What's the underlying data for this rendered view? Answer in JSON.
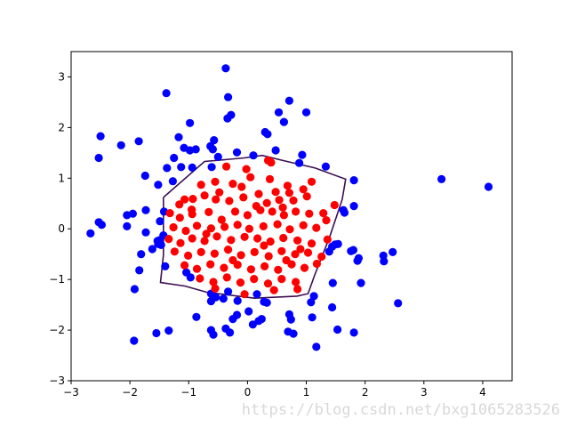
{
  "watermark": "https://blog.csdn.net/bxg1065283526",
  "colors": {
    "class_outer": "#0000ff",
    "class_inner": "#ff0000",
    "boundary": "#3b0f53",
    "axes": "#000000",
    "background": "#ffffff"
  },
  "chart_data": {
    "type": "scatter",
    "title": "",
    "xlabel": "",
    "ylabel": "",
    "xlim": [
      -3,
      4.5
    ],
    "ylim": [
      -3,
      3.5
    ],
    "xticks": [
      "-3",
      "-2",
      "-1",
      "0",
      "1",
      "2",
      "3",
      "4"
    ],
    "yticks": [
      "-3",
      "-2",
      "-1",
      "0",
      "1",
      "2",
      "3"
    ],
    "grid": false,
    "series": [
      {
        "color": "#0000ff",
        "points": [
          [
            -0.37,
            3.17
          ],
          [
            -1.38,
            2.68
          ],
          [
            -0.33,
            2.6
          ],
          [
            0.71,
            2.53
          ],
          [
            -0.28,
            2.25
          ],
          [
            -0.34,
            2.18
          ],
          [
            0.53,
            2.3
          ],
          [
            1.0,
            2.3
          ],
          [
            -0.98,
            2.09
          ],
          [
            0.62,
            2.11
          ],
          [
            -2.5,
            1.83
          ],
          [
            -1.85,
            1.73
          ],
          [
            -2.15,
            1.65
          ],
          [
            -0.57,
            1.75
          ],
          [
            -1.17,
            1.81
          ],
          [
            0.3,
            1.91
          ],
          [
            0.34,
            1.87
          ],
          [
            -1.08,
            1.6
          ],
          [
            -0.98,
            1.55
          ],
          [
            -0.88,
            1.57
          ],
          [
            -0.63,
            1.63
          ],
          [
            -0.59,
            1.57
          ],
          [
            -0.18,
            1.51
          ],
          [
            0.48,
            1.55
          ],
          [
            -2.53,
            1.4
          ],
          [
            -0.5,
            1.42
          ],
          [
            0.1,
            1.45
          ],
          [
            -1.25,
            1.4
          ],
          [
            0.93,
            1.46
          ],
          [
            -1.37,
            1.2
          ],
          [
            -1.13,
            1.22
          ],
          [
            -0.94,
            1.21
          ],
          [
            -0.61,
            1.22
          ],
          [
            1.33,
            1.23
          ],
          [
            0.88,
            1.3
          ],
          [
            -1.74,
            1.05
          ],
          [
            -1.52,
            0.87
          ],
          [
            -1.27,
            0.94
          ],
          [
            1.81,
            0.96
          ],
          [
            3.3,
            0.98
          ],
          [
            4.1,
            0.83
          ],
          [
            -1.42,
            0.34
          ],
          [
            -1.95,
            0.3
          ],
          [
            -1.73,
            0.37
          ],
          [
            -2.05,
            0.27
          ],
          [
            -1.49,
            0.15
          ],
          [
            1.63,
            0.37
          ],
          [
            1.65,
            0.32
          ],
          [
            1.81,
            0.45
          ],
          [
            -2.53,
            0.13
          ],
          [
            -2.48,
            0.08
          ],
          [
            -2.05,
            0.05
          ],
          [
            -2.67,
            -0.09
          ],
          [
            -1.73,
            -0.07
          ],
          [
            -1.52,
            -0.3
          ],
          [
            -1.49,
            -0.22
          ],
          [
            -1.43,
            -0.13
          ],
          [
            -1.53,
            -0.24
          ],
          [
            -1.81,
            -0.5
          ],
          [
            -1.62,
            -0.4
          ],
          [
            -1.47,
            -0.32
          ],
          [
            1.54,
            -0.3
          ],
          [
            1.49,
            -0.31
          ],
          [
            1.44,
            -0.35
          ],
          [
            1.39,
            -0.45
          ],
          [
            1.76,
            -0.44
          ],
          [
            1.8,
            -0.42
          ],
          [
            1.89,
            -0.58
          ],
          [
            1.87,
            -0.63
          ],
          [
            2.31,
            -0.53
          ],
          [
            2.32,
            -0.64
          ],
          [
            2.47,
            -0.46
          ],
          [
            -1.84,
            -0.82
          ],
          [
            -1.4,
            -0.74
          ],
          [
            -1.04,
            -0.86
          ],
          [
            -0.97,
            -0.96
          ],
          [
            1.93,
            -1.07
          ],
          [
            -1.92,
            -1.19
          ],
          [
            1.45,
            -1.07
          ],
          [
            -0.62,
            -1.28
          ],
          [
            -0.62,
            -1.43
          ],
          [
            -0.54,
            -1.35
          ],
          [
            -0.41,
            -1.38
          ],
          [
            -0.33,
            -1.24
          ],
          [
            -0.17,
            -1.42
          ],
          [
            0.16,
            -1.29
          ],
          [
            0.28,
            -1.44
          ],
          [
            0.33,
            -1.46
          ],
          [
            1.08,
            -1.45
          ],
          [
            1.13,
            -1.33
          ],
          [
            1.44,
            -1.55
          ],
          [
            2.56,
            -1.47
          ],
          [
            -0.87,
            -1.74
          ],
          [
            -0.25,
            -1.78
          ],
          [
            -0.18,
            -1.7
          ],
          [
            0.19,
            -1.82
          ],
          [
            0.24,
            -1.78
          ],
          [
            0.09,
            -1.89
          ],
          [
            0.02,
            -1.63
          ],
          [
            0.71,
            -1.69
          ],
          [
            0.74,
            -1.79
          ],
          [
            1.1,
            -1.75
          ],
          [
            0.69,
            -2.03
          ],
          [
            0.78,
            -2.07
          ],
          [
            1.53,
            -1.99
          ],
          [
            1.81,
            -2.05
          ],
          [
            -0.62,
            -2.0
          ],
          [
            -0.58,
            -2.09
          ],
          [
            -0.37,
            -1.97
          ],
          [
            -0.3,
            -2.05
          ],
          [
            -1.34,
            -2.01
          ],
          [
            -1.55,
            -2.06
          ],
          [
            -1.93,
            -2.21
          ],
          [
            1.17,
            -2.33
          ]
        ]
      },
      {
        "color": "#ff0000",
        "points": [
          [
            -0.36,
            1.23
          ],
          [
            -0.02,
            1.18
          ],
          [
            0.35,
            1.35
          ],
          [
            0.4,
            1.31
          ],
          [
            -0.79,
            0.87
          ],
          [
            -0.55,
            0.93
          ],
          [
            -0.25,
            0.89
          ],
          [
            -0.1,
            0.83
          ],
          [
            0.05,
            1.02
          ],
          [
            0.38,
            0.98
          ],
          [
            0.48,
            0.73
          ],
          [
            0.68,
            0.85
          ],
          [
            0.95,
            0.78
          ],
          [
            1.09,
            0.93
          ],
          [
            -1.16,
            0.48
          ],
          [
            -1.07,
            0.58
          ],
          [
            -0.93,
            0.59
          ],
          [
            -0.73,
            0.66
          ],
          [
            -0.54,
            0.58
          ],
          [
            -0.31,
            0.55
          ],
          [
            -0.07,
            0.62
          ],
          [
            0.19,
            0.69
          ],
          [
            0.33,
            0.51
          ],
          [
            0.54,
            0.57
          ],
          [
            0.71,
            0.71
          ],
          [
            0.78,
            0.56
          ],
          [
            1.01,
            0.64
          ],
          [
            -1.32,
            0.31
          ],
          [
            -1.15,
            0.22
          ],
          [
            -0.94,
            0.29
          ],
          [
            -0.66,
            0.33
          ],
          [
            -0.44,
            0.18
          ],
          [
            -0.21,
            0.34
          ],
          [
            0.0,
            0.27
          ],
          [
            0.22,
            0.37
          ],
          [
            0.42,
            0.34
          ],
          [
            0.62,
            0.27
          ],
          [
            0.82,
            0.34
          ],
          [
            1.05,
            0.3
          ],
          [
            1.29,
            0.31
          ],
          [
            1.48,
            0.47
          ],
          [
            -1.26,
            0.03
          ],
          [
            -1.05,
            -0.04
          ],
          [
            -0.86,
            0.06
          ],
          [
            -0.62,
            0.01
          ],
          [
            -0.39,
            0.04
          ],
          [
            -0.17,
            0.08
          ],
          [
            0.03,
            0.0
          ],
          [
            0.27,
            0.05
          ],
          [
            0.51,
            0.09
          ],
          [
            0.72,
            -0.01
          ],
          [
            0.95,
            0.07
          ],
          [
            1.17,
            0.02
          ],
          [
            1.34,
            0.17
          ],
          [
            -1.34,
            -0.2
          ],
          [
            -1.14,
            -0.28
          ],
          [
            -0.94,
            -0.19
          ],
          [
            -0.73,
            -0.24
          ],
          [
            -0.52,
            -0.15
          ],
          [
            -0.28,
            -0.22
          ],
          [
            -0.05,
            -0.16
          ],
          [
            0.17,
            -0.19
          ],
          [
            0.39,
            -0.25
          ],
          [
            0.61,
            -0.18
          ],
          [
            0.85,
            -0.23
          ],
          [
            1.09,
            -0.29
          ],
          [
            1.36,
            -0.21
          ],
          [
            -1.24,
            -0.45
          ],
          [
            -1.01,
            -0.53
          ],
          [
            -0.79,
            -0.46
          ],
          [
            -0.56,
            -0.49
          ],
          [
            -0.33,
            -0.41
          ],
          [
            -0.11,
            -0.52
          ],
          [
            0.12,
            -0.46
          ],
          [
            0.36,
            -0.54
          ],
          [
            0.58,
            -0.44
          ],
          [
            0.81,
            -0.5
          ],
          [
            1.03,
            -0.47
          ],
          [
            1.26,
            -0.55
          ],
          [
            -1.07,
            -0.72
          ],
          [
            -0.86,
            -0.79
          ],
          [
            -0.63,
            -0.7
          ],
          [
            -0.4,
            -0.77
          ],
          [
            -0.17,
            -0.71
          ],
          [
            0.06,
            -0.8
          ],
          [
            0.29,
            -0.74
          ],
          [
            0.52,
            -0.81
          ],
          [
            0.75,
            -0.7
          ],
          [
            0.97,
            -0.77
          ],
          [
            1.18,
            -0.69
          ],
          [
            -0.81,
            -0.98
          ],
          [
            -0.58,
            -1.05
          ],
          [
            -0.35,
            -0.96
          ],
          [
            -0.12,
            -1.06
          ],
          [
            0.11,
            -0.99
          ],
          [
            0.35,
            -1.08
          ],
          [
            0.58,
            -0.99
          ],
          [
            0.82,
            -1.05
          ],
          [
            -0.55,
            -1.18
          ],
          [
            -0.05,
            -1.29
          ],
          [
            0.45,
            -1.21
          ],
          [
            0.85,
            -1.19
          ],
          [
            -0.95,
            0.38
          ],
          [
            -0.48,
            0.72
          ],
          [
            0.15,
            0.45
          ],
          [
            0.6,
            0.42
          ],
          [
            -0.7,
            -0.1
          ],
          [
            0.28,
            -0.33
          ],
          [
            0.9,
            -0.4
          ],
          [
            -0.25,
            -0.62
          ],
          [
            0.66,
            -0.62
          ]
        ]
      }
    ],
    "boundary": [
      [
        -1.43,
        0.62
      ],
      [
        -0.73,
        1.33
      ],
      [
        -0.05,
        1.4
      ],
      [
        0.25,
        1.45
      ],
      [
        0.6,
        1.35
      ],
      [
        1.15,
        1.2
      ],
      [
        1.67,
        0.98
      ],
      [
        1.61,
        0.58
      ],
      [
        1.4,
        -0.15
      ],
      [
        1.14,
        -0.92
      ],
      [
        1.03,
        -1.28
      ],
      [
        0.84,
        -1.33
      ],
      [
        0.12,
        -1.37
      ],
      [
        -0.7,
        -1.25
      ],
      [
        -1.06,
        -1.13
      ],
      [
        -1.48,
        -1.06
      ],
      [
        -1.43,
        -0.52
      ],
      [
        -1.43,
        0.62
      ]
    ]
  }
}
